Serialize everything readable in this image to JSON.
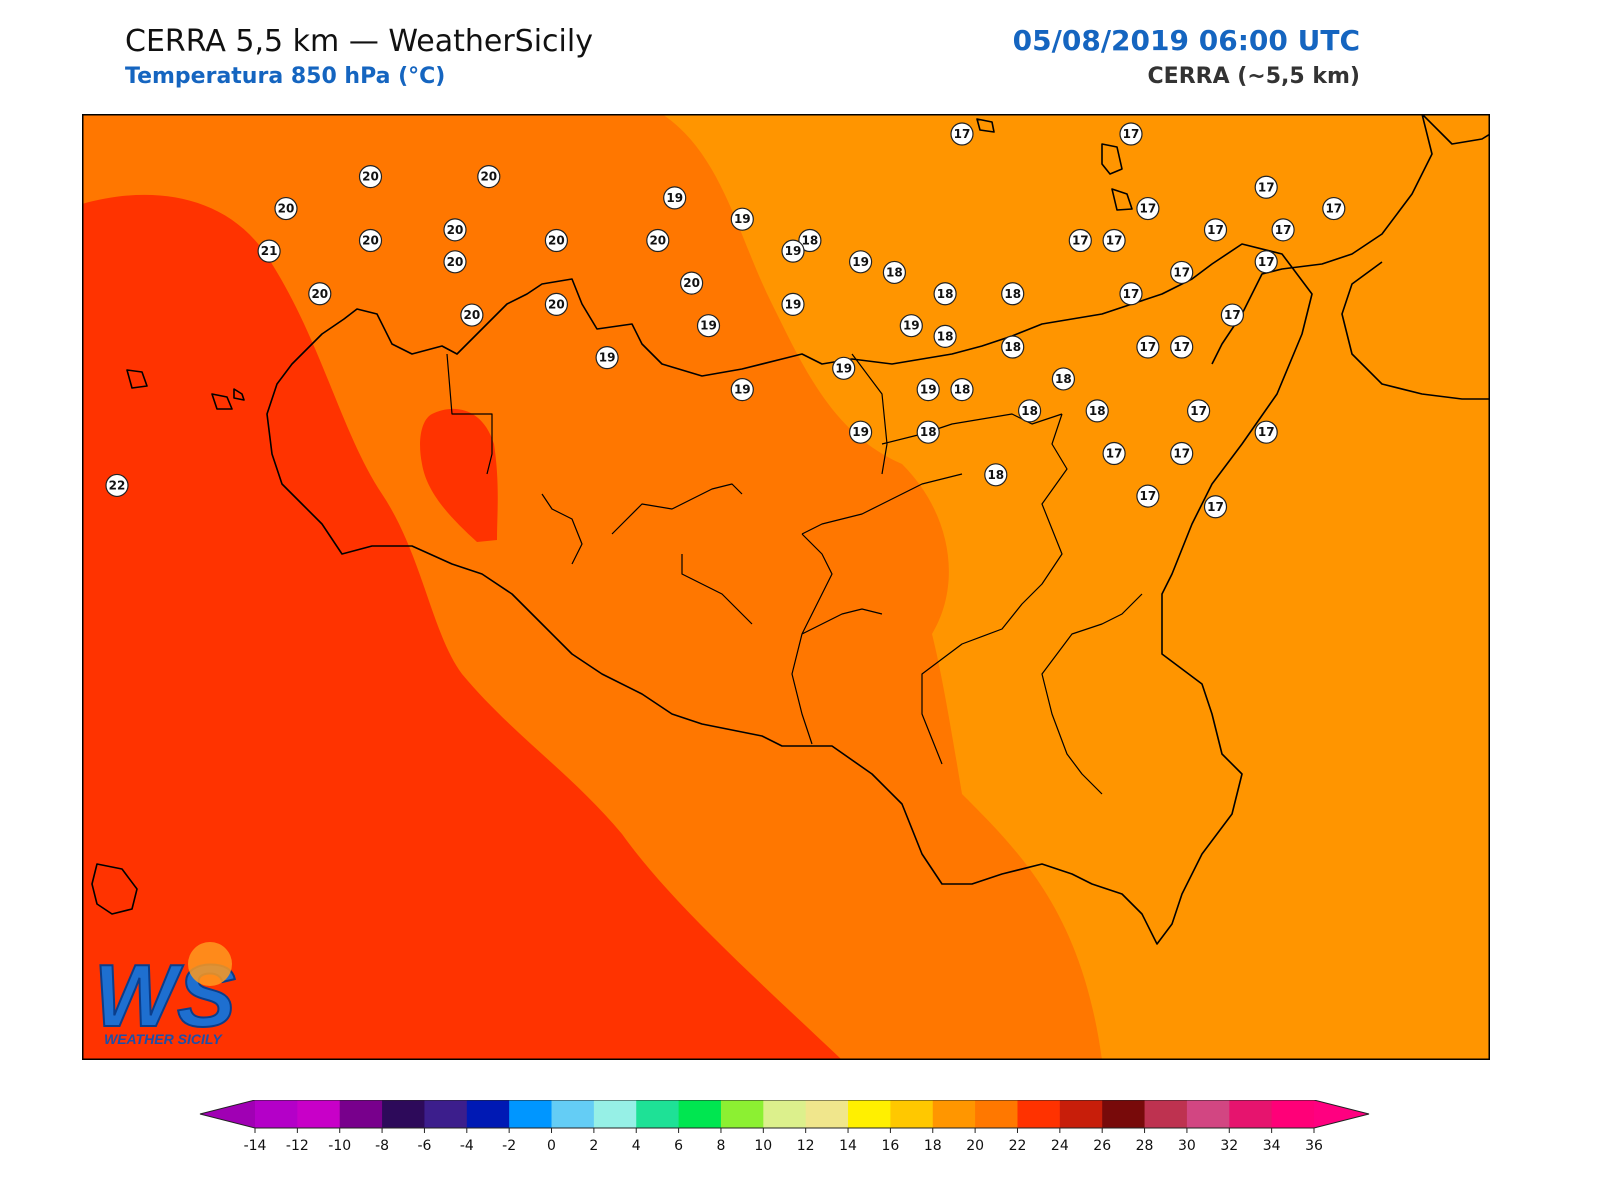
{
  "header": {
    "title": "CERRA 5,5 km — WeatherSicily",
    "subtitle": "Temperatura 850 hPa (°C)",
    "datetime": "05/08/2019 06:00 UTC",
    "model": "CERRA (~5,5 km)"
  },
  "logo": {
    "letters": "WS",
    "text": "WEATHER SICILY"
  },
  "colors": {
    "band_16_18": "#ff9500",
    "band_18_20": "#ff7700",
    "band_20_22": "#ff3300",
    "coastline": "#000000",
    "label_fill": "#ffffff"
  },
  "colorbar": {
    "ticks": [
      "-14",
      "-12",
      "-10",
      "-8",
      "-6",
      "-4",
      "-2",
      "0",
      "2",
      "4",
      "6",
      "8",
      "10",
      "12",
      "14",
      "16",
      "18",
      "20",
      "22",
      "24",
      "26",
      "28",
      "30",
      "32",
      "34",
      "36"
    ],
    "colors": [
      "#b400c8",
      "#c800c8",
      "#78008c",
      "#2d0a5a",
      "#3c1e8c",
      "#0019b4",
      "#0096ff",
      "#64cdf5",
      "#96f0e6",
      "#1ee196",
      "#00e650",
      "#8cf032",
      "#dcf08c",
      "#f0e68c",
      "#fff000",
      "#ffc800",
      "#ff9600",
      "#ff7800",
      "#ff3200",
      "#c81e0a",
      "#780a0a",
      "#be3250",
      "#d24682",
      "#e6146e",
      "#ff0078"
    ],
    "under_color": "#a000b4",
    "over_color": "#ff0080"
  },
  "labels": [
    {
      "v": "17",
      "x": 12.5,
      "y": 38.7
    },
    {
      "v": "17",
      "x": 14.5,
      "y": 38.7
    },
    {
      "v": "17",
      "x": 16.1,
      "y": 38.2
    },
    {
      "v": "17",
      "x": 16.9,
      "y": 38.0
    },
    {
      "v": "17",
      "x": 14.7,
      "y": 38.0
    },
    {
      "v": "17",
      "x": 15.5,
      "y": 37.8
    },
    {
      "v": "17",
      "x": 16.3,
      "y": 37.8
    },
    {
      "v": "17",
      "x": 13.9,
      "y": 37.7
    },
    {
      "v": "17",
      "x": 14.3,
      "y": 37.7
    },
    {
      "v": "17",
      "x": 16.1,
      "y": 37.5
    },
    {
      "v": "17",
      "x": 15.1,
      "y": 37.4
    },
    {
      "v": "17",
      "x": 14.5,
      "y": 37.2
    },
    {
      "v": "17",
      "x": 15.7,
      "y": 37.0
    },
    {
      "v": "17",
      "x": 14.7,
      "y": 36.7
    },
    {
      "v": "17",
      "x": 15.1,
      "y": 36.7
    },
    {
      "v": "17",
      "x": 15.3,
      "y": 36.1
    },
    {
      "v": "17",
      "x": 16.1,
      "y": 35.9
    },
    {
      "v": "17",
      "x": 14.3,
      "y": 35.7
    },
    {
      "v": "17",
      "x": 15.1,
      "y": 35.7
    },
    {
      "v": "17",
      "x": 14.7,
      "y": 35.3
    },
    {
      "v": "17",
      "x": 15.5,
      "y": 35.2
    },
    {
      "v": "18",
      "x": 10.7,
      "y": 37.7
    },
    {
      "v": "18",
      "x": 11.7,
      "y": 37.4
    },
    {
      "v": "18",
      "x": 12.3,
      "y": 37.2
    },
    {
      "v": "18",
      "x": 13.1,
      "y": 37.2
    },
    {
      "v": "18",
      "x": 12.3,
      "y": 36.8
    },
    {
      "v": "18",
      "x": 13.1,
      "y": 36.7
    },
    {
      "v": "18",
      "x": 13.7,
      "y": 36.4
    },
    {
      "v": "18",
      "x": 12.5,
      "y": 36.3
    },
    {
      "v": "18",
      "x": 13.3,
      "y": 36.1
    },
    {
      "v": "18",
      "x": 14.1,
      "y": 36.1
    },
    {
      "v": "18",
      "x": 12.1,
      "y": 35.9
    },
    {
      "v": "18",
      "x": 12.9,
      "y": 35.5
    },
    {
      "v": "19",
      "x": 9.1,
      "y": 38.1
    },
    {
      "v": "19",
      "x": 9.9,
      "y": 37.9
    },
    {
      "v": "19",
      "x": 10.5,
      "y": 37.6
    },
    {
      "v": "19",
      "x": 11.3,
      "y": 37.5
    },
    {
      "v": "19",
      "x": 10.5,
      "y": 37.1
    },
    {
      "v": "19",
      "x": 9.5,
      "y": 36.9
    },
    {
      "v": "19",
      "x": 11.9,
      "y": 36.9
    },
    {
      "v": "19",
      "x": 8.3,
      "y": 36.6
    },
    {
      "v": "19",
      "x": 11.1,
      "y": 36.5
    },
    {
      "v": "19",
      "x": 9.9,
      "y": 36.3
    },
    {
      "v": "19",
      "x": 12.1,
      "y": 36.3
    },
    {
      "v": "19",
      "x": 11.3,
      "y": 35.9
    },
    {
      "v": "20",
      "x": 5.5,
      "y": 38.3
    },
    {
      "v": "20",
      "x": 6.9,
      "y": 38.3
    },
    {
      "v": "20",
      "x": 4.5,
      "y": 38.0
    },
    {
      "v": "20",
      "x": 6.5,
      "y": 37.8
    },
    {
      "v": "20",
      "x": 5.5,
      "y": 37.7
    },
    {
      "v": "20",
      "x": 7.7,
      "y": 37.7
    },
    {
      "v": "20",
      "x": 8.9,
      "y": 37.7
    },
    {
      "v": "20",
      "x": 6.5,
      "y": 37.5
    },
    {
      "v": "20",
      "x": 9.3,
      "y": 37.3
    },
    {
      "v": "20",
      "x": 4.9,
      "y": 37.2
    },
    {
      "v": "20",
      "x": 7.7,
      "y": 37.1
    },
    {
      "v": "20",
      "x": 6.7,
      "y": 37.0
    },
    {
      "v": "21",
      "x": 4.3,
      "y": 37.6
    },
    {
      "v": "22",
      "x": 2.5,
      "y": 35.4
    }
  ]
}
